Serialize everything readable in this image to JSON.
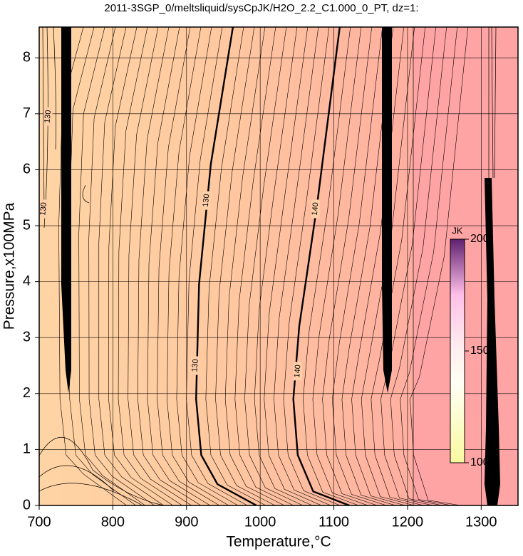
{
  "chart_data": {
    "type": "contour",
    "title": "2011-3SGP_0/meltsliquid/sysCpJK/H2O_2.2_C1.000_0_PT, dz=1:",
    "x_label": "Temperature,°C",
    "y_label": "Pressure,x100MPa",
    "xlim": [
      700,
      1350
    ],
    "ylim": [
      0,
      8.55
    ],
    "xticks": [
      700,
      800,
      900,
      1000,
      1100,
      1200,
      1300
    ],
    "yticks": [
      0,
      1,
      2,
      3,
      4,
      5,
      6,
      7,
      8
    ],
    "grid": true,
    "contours": [
      {
        "level": 130,
        "T": [
          995,
          942,
          920,
          913,
          917,
          933,
          963
        ],
        "P": [
          0,
          0.38,
          0.9,
          1.9,
          3.95,
          6.1,
          8.55
        ]
      },
      {
        "level": 140,
        "T": [
          1121,
          1072,
          1051,
          1045,
          1053,
          1077,
          1108
        ],
        "P": [
          0,
          0.25,
          0.9,
          1.9,
          3.2,
          5.35,
          8.55
        ]
      }
    ],
    "contour_labels": [
      {
        "level": 130,
        "T": 927,
        "P": 5.45
      },
      {
        "level": 130,
        "T": 912,
        "P": 2.5
      },
      {
        "level": 140,
        "T": 1075,
        "P": 5.3
      },
      {
        "level": 140,
        "T": 1051,
        "P": 2.4
      },
      {
        "level": 130,
        "T": 712,
        "P": 6.95
      },
      {
        "level": 130,
        "T": 706,
        "P": 5.3
      }
    ],
    "colorbar": {
      "title": "JK",
      "lim": [
        100,
        200
      ],
      "ticks": [
        100,
        150,
        200
      ]
    }
  }
}
